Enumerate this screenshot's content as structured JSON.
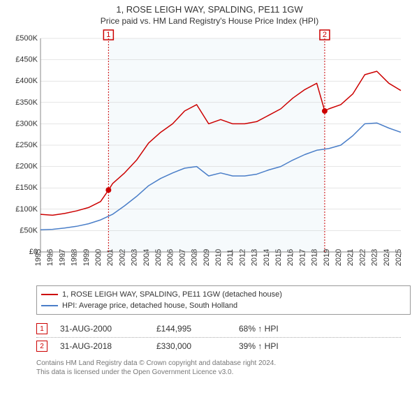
{
  "title": "1, ROSE LEIGH WAY, SPALDING, PE11 1GW",
  "subtitle": "Price paid vs. HM Land Registry's House Price Index (HPI)",
  "chart": {
    "type": "line",
    "background_color": "#ffffff",
    "grid_color": "#cccccc",
    "axis_color": "#888888",
    "label_fontsize": 11,
    "x": {
      "min": 1995,
      "max": 2025,
      "ticks": [
        1995,
        1996,
        1997,
        1998,
        1999,
        2000,
        2001,
        2002,
        2003,
        2004,
        2005,
        2006,
        2007,
        2008,
        2009,
        2010,
        2011,
        2012,
        2013,
        2014,
        2015,
        2016,
        2017,
        2018,
        2019,
        2020,
        2021,
        2022,
        2023,
        2024,
        2025
      ]
    },
    "y": {
      "min": 0,
      "max": 500000,
      "tick_step": 50000,
      "prefix": "£",
      "ticks": [
        0,
        50000,
        100000,
        150000,
        200000,
        250000,
        300000,
        350000,
        400000,
        450000,
        500000
      ],
      "tick_labels": [
        "£0",
        "£50K",
        "£100K",
        "£150K",
        "£200K",
        "£250K",
        "£300K",
        "£350K",
        "£400K",
        "£450K",
        "£500K"
      ]
    },
    "shade_bands": [
      {
        "from": 2000.66,
        "to": 2018.66,
        "color": "#d5e6f2"
      }
    ],
    "series": [
      {
        "name": "property",
        "label": "1, ROSE LEIGH WAY, SPALDING, PE11 1GW (detached house)",
        "color": "#cc0000",
        "line_width": 1.5,
        "data": [
          [
            1995,
            88000
          ],
          [
            1996,
            86000
          ],
          [
            1997,
            90000
          ],
          [
            1998,
            96000
          ],
          [
            1999,
            104000
          ],
          [
            2000,
            118000
          ],
          [
            2000.66,
            144995
          ],
          [
            2001,
            160000
          ],
          [
            2002,
            185000
          ],
          [
            2003,
            215000
          ],
          [
            2004,
            255000
          ],
          [
            2005,
            280000
          ],
          [
            2006,
            300000
          ],
          [
            2007,
            330000
          ],
          [
            2008,
            345000
          ],
          [
            2009,
            300000
          ],
          [
            2010,
            310000
          ],
          [
            2011,
            300000
          ],
          [
            2012,
            300000
          ],
          [
            2013,
            305000
          ],
          [
            2014,
            320000
          ],
          [
            2015,
            335000
          ],
          [
            2016,
            360000
          ],
          [
            2017,
            380000
          ],
          [
            2018,
            395000
          ],
          [
            2018.66,
            330000
          ],
          [
            2019,
            335000
          ],
          [
            2020,
            345000
          ],
          [
            2021,
            370000
          ],
          [
            2022,
            415000
          ],
          [
            2023,
            423000
          ],
          [
            2024,
            395000
          ],
          [
            2025,
            378000
          ]
        ]
      },
      {
        "name": "hpi",
        "label": "HPI: Average price, detached house, South Holland",
        "color": "#4a7ec8",
        "line_width": 1.5,
        "data": [
          [
            1995,
            52000
          ],
          [
            1996,
            53000
          ],
          [
            1997,
            56000
          ],
          [
            1998,
            60000
          ],
          [
            1999,
            66000
          ],
          [
            2000,
            75000
          ],
          [
            2001,
            88000
          ],
          [
            2002,
            108000
          ],
          [
            2003,
            130000
          ],
          [
            2004,
            155000
          ],
          [
            2005,
            172000
          ],
          [
            2006,
            185000
          ],
          [
            2007,
            196000
          ],
          [
            2008,
            200000
          ],
          [
            2009,
            178000
          ],
          [
            2010,
            185000
          ],
          [
            2011,
            178000
          ],
          [
            2012,
            178000
          ],
          [
            2013,
            182000
          ],
          [
            2014,
            192000
          ],
          [
            2015,
            200000
          ],
          [
            2016,
            215000
          ],
          [
            2017,
            228000
          ],
          [
            2018,
            238000
          ],
          [
            2019,
            242000
          ],
          [
            2020,
            250000
          ],
          [
            2021,
            272000
          ],
          [
            2022,
            300000
          ],
          [
            2023,
            302000
          ],
          [
            2024,
            290000
          ],
          [
            2025,
            280000
          ]
        ]
      }
    ],
    "markers": [
      {
        "n": "1",
        "x": 2000.66,
        "y": 144995,
        "color": "#cc0000"
      },
      {
        "n": "2",
        "x": 2018.66,
        "y": 330000,
        "color": "#cc0000"
      }
    ]
  },
  "legend": {
    "items": [
      {
        "label": "1, ROSE LEIGH WAY, SPALDING, PE11 1GW (detached house)",
        "color": "#cc0000"
      },
      {
        "label": "HPI: Average price, detached house, South Holland",
        "color": "#4a7ec8"
      }
    ]
  },
  "sales": [
    {
      "n": "1",
      "date": "31-AUG-2000",
      "price": "£144,995",
      "pct": "68% ↑ HPI",
      "color": "#cc0000"
    },
    {
      "n": "2",
      "date": "31-AUG-2018",
      "price": "£330,000",
      "pct": "39% ↑ HPI",
      "color": "#cc0000"
    }
  ],
  "footer": {
    "line1": "Contains HM Land Registry data © Crown copyright and database right 2024.",
    "line2": "This data is licensed under the Open Government Licence v3.0."
  }
}
